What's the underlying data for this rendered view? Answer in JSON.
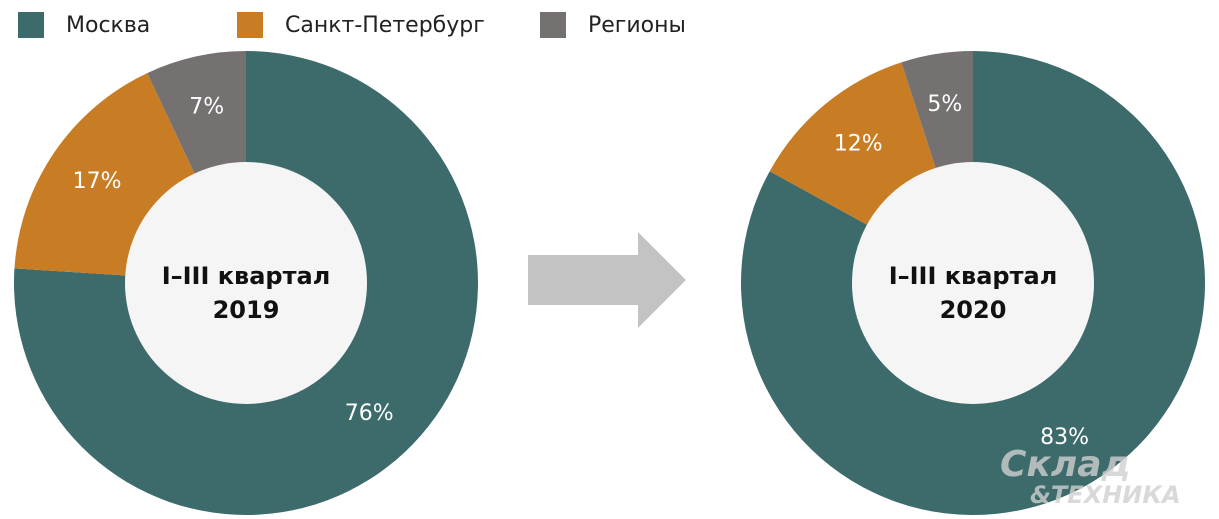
{
  "legend": {
    "names": [
      "Москва",
      "Санкт-Петербург",
      "Регионы"
    ],
    "colors": [
      "#3d6b6b",
      "#c87d24",
      "#767171"
    ]
  },
  "chart_data": [
    {
      "type": "pie",
      "title": "I–III квартал",
      "subtitle": "2019",
      "values": [
        76,
        17,
        7
      ],
      "value_labels": [
        "76%",
        "17%",
        "7%"
      ]
    },
    {
      "type": "pie",
      "title": "I–III квартал",
      "subtitle": "2020",
      "values": [
        83,
        12,
        5
      ],
      "value_labels": [
        "83%",
        "12%",
        "5%"
      ]
    }
  ],
  "watermark": {
    "line1": "Склад",
    "line2": "&ТЕХНИКА"
  }
}
